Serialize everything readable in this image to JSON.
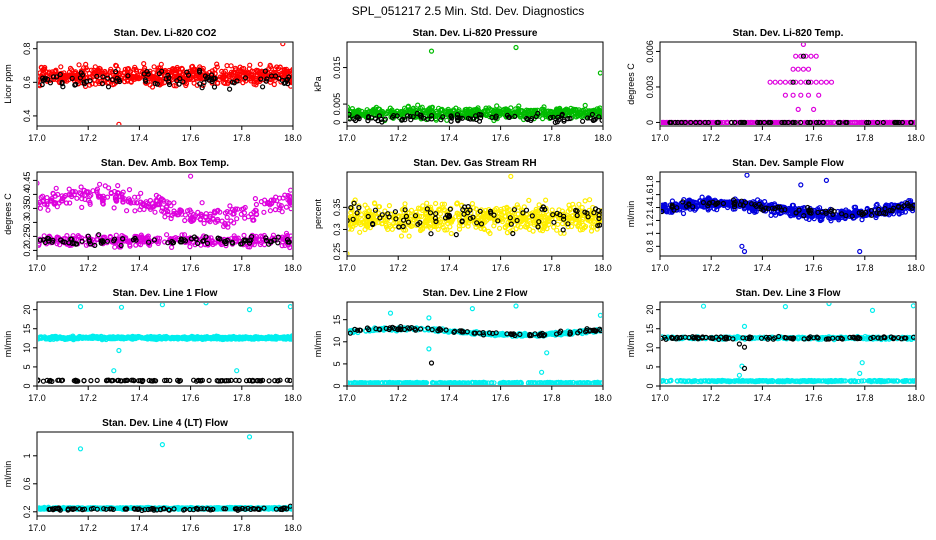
{
  "figure": {
    "title": "SPL_051217  2.5 Min. Std. Dev. Diagnostics"
  },
  "chart_data": [
    {
      "type": "scatter",
      "title": "Stan. Dev. Li-820 CO2",
      "ylabel": "Licor ppm",
      "xlim": [
        17.0,
        18.0
      ],
      "ylim": [
        0.34,
        0.84
      ],
      "xticks": [
        17.0,
        17.2,
        17.4,
        17.6,
        17.8,
        18.0
      ],
      "yticks": [
        0.4,
        0.6,
        0.8
      ],
      "series": [
        {
          "name": "main",
          "color": "#ff0000",
          "shape": "circle",
          "count": 600,
          "bands": [
            {
              "center": 0.64,
              "spread": 0.055
            }
          ],
          "outliers": [
            [
              17.32,
              0.35
            ],
            [
              17.96,
              0.83
            ]
          ]
        },
        {
          "name": "secondary",
          "color": "#000000",
          "shape": "circle",
          "count": 90,
          "bands": [
            {
              "center": 0.62,
              "spread": 0.05
            }
          ],
          "outliers": []
        }
      ]
    },
    {
      "type": "scatter",
      "title": "Stan. Dev. Li-820 Pressure",
      "ylabel": "kPa",
      "xlim": [
        17.0,
        18.0
      ],
      "ylim": [
        -0.001,
        0.022
      ],
      "xticks": [
        17.0,
        17.2,
        17.4,
        17.6,
        17.8,
        18.0
      ],
      "yticks": [
        0.0,
        0.005,
        0.015
      ],
      "series": [
        {
          "name": "main",
          "color": "#00bb00",
          "shape": "circle",
          "count": 600,
          "bands": [
            {
              "center": 0.0025,
              "spread": 0.0015
            }
          ],
          "outliers": [
            [
              17.33,
              0.0195
            ],
            [
              17.66,
              0.0205
            ],
            [
              17.99,
              0.0135
            ]
          ]
        },
        {
          "name": "secondary",
          "color": "#000000",
          "shape": "circle",
          "count": 90,
          "bands": [
            {
              "center": 0.0012,
              "spread": 0.001
            }
          ],
          "outliers": []
        }
      ]
    },
    {
      "type": "scatter",
      "title": "Stan. Dev. Li-820 Temp.",
      "ylabel": "degrees C",
      "xlim": [
        17.0,
        18.0
      ],
      "ylim": [
        -0.0003,
        0.0068
      ],
      "xticks": [
        17.0,
        17.2,
        17.4,
        17.6,
        17.8,
        18.0
      ],
      "yticks": [
        0.0,
        0.003,
        0.006
      ],
      "series": [
        {
          "name": "zero",
          "color": "#dd00dd",
          "shape": "circle",
          "count": 260,
          "bands": [
            {
              "center": 0.0,
              "spread": 0.0
            }
          ],
          "outliers": []
        },
        {
          "name": "black-zero",
          "color": "#000000",
          "shape": "circle",
          "count": 60,
          "bands": [
            {
              "center": 0.0,
              "spread": 0.0
            }
          ],
          "outliers": []
        },
        {
          "name": "stepped",
          "color": "#dd00dd",
          "shape": "circle",
          "count": 0,
          "bands": [],
          "outliers": [
            [
              17.43,
              0.0034
            ],
            [
              17.45,
              0.0034
            ],
            [
              17.47,
              0.0034
            ],
            [
              17.49,
              0.0034
            ],
            [
              17.51,
              0.0034
            ],
            [
              17.53,
              0.0034
            ],
            [
              17.55,
              0.0034
            ],
            [
              17.57,
              0.0034
            ],
            [
              17.59,
              0.0034
            ],
            [
              17.61,
              0.0034
            ],
            [
              17.63,
              0.0034
            ],
            [
              17.65,
              0.0034
            ],
            [
              17.67,
              0.0034
            ],
            [
              17.52,
              0.0045
            ],
            [
              17.54,
              0.0045
            ],
            [
              17.56,
              0.0045
            ],
            [
              17.58,
              0.0045
            ],
            [
              17.53,
              0.0056
            ],
            [
              17.55,
              0.0056
            ],
            [
              17.57,
              0.0056
            ],
            [
              17.59,
              0.0056
            ],
            [
              17.61,
              0.0056
            ],
            [
              17.56,
              0.0066
            ],
            [
              17.49,
              0.0023
            ],
            [
              17.52,
              0.0023
            ],
            [
              17.55,
              0.0023
            ],
            [
              17.58,
              0.0023
            ],
            [
              17.62,
              0.0023
            ],
            [
              17.54,
              0.0011
            ],
            [
              17.6,
              0.0011
            ]
          ]
        },
        {
          "name": "black-step",
          "color": "#000000",
          "shape": "circle",
          "count": 0,
          "bands": [],
          "outliers": [
            [
              17.52,
              0.0034
            ],
            [
              17.58,
              0.0034
            ],
            [
              17.56,
              0.0056
            ]
          ]
        }
      ]
    },
    {
      "type": "scatter",
      "title": "Stan. Dev. Amb. Box Temp.",
      "ylabel": "degrees C",
      "xlim": [
        17.0,
        18.0
      ],
      "ylim": [
        0.18,
        0.48
      ],
      "xticks": [
        17.0,
        17.2,
        17.4,
        17.6,
        17.8,
        18.0
      ],
      "yticks": [
        0.2,
        0.25,
        0.3,
        0.35,
        0.4,
        0.45
      ],
      "series": [
        {
          "name": "main",
          "color": "#dd00dd",
          "shape": "circle",
          "count": 600,
          "bands": [
            {
              "center": 0.36,
              "spread": 0.035,
              "wave": 0.04
            },
            {
              "center": 0.235,
              "spread": 0.02
            }
          ],
          "outliers": [
            [
              17.6,
              0.465
            ],
            [
              17.0,
              0.44
            ]
          ]
        },
        {
          "name": "secondary",
          "color": "#000000",
          "shape": "circle",
          "count": 90,
          "bands": [
            {
              "center": 0.235,
              "spread": 0.015
            }
          ],
          "outliers": []
        }
      ]
    },
    {
      "type": "scatter",
      "title": "Stan. Dev. Gas Stream RH",
      "ylabel": "percent",
      "xlim": [
        17.0,
        18.0
      ],
      "ylim": [
        0.24,
        0.43
      ],
      "xticks": [
        17.0,
        17.2,
        17.4,
        17.6,
        17.8,
        18.0
      ],
      "yticks": [
        0.25,
        0.3,
        0.35
      ],
      "series": [
        {
          "name": "main",
          "color": "#ffee00",
          "shape": "circle",
          "count": 600,
          "bands": [
            {
              "center": 0.325,
              "spread": 0.03
            }
          ],
          "outliers": [
            [
              17.0,
              0.245
            ],
            [
              17.64,
              0.42
            ]
          ]
        },
        {
          "name": "secondary",
          "color": "#000000",
          "shape": "circle",
          "count": 90,
          "bands": [
            {
              "center": 0.33,
              "spread": 0.03
            }
          ],
          "outliers": []
        }
      ]
    },
    {
      "type": "scatter",
      "title": "Stan. Dev. Sample Flow",
      "ylabel": "ml/min",
      "xlim": [
        17.0,
        18.0
      ],
      "ylim": [
        0.65,
        1.95
      ],
      "xticks": [
        17.0,
        17.2,
        17.4,
        17.6,
        17.8,
        18.0
      ],
      "yticks": [
        0.8,
        1.0,
        1.2,
        1.4,
        1.6,
        1.8
      ],
      "series": [
        {
          "name": "main",
          "color": "#0000dd",
          "shape": "circle",
          "count": 600,
          "bands": [
            {
              "center": 1.38,
              "spread": 0.09,
              "wave": 0.08
            }
          ],
          "outliers": [
            [
              17.32,
              0.8
            ],
            [
              17.33,
              0.72
            ],
            [
              17.78,
              0.72
            ],
            [
              17.34,
              1.9
            ],
            [
              17.65,
              1.82
            ],
            [
              17.55,
              1.75
            ]
          ]
        },
        {
          "name": "secondary",
          "color": "#000000",
          "shape": "circle",
          "count": 90,
          "bands": [
            {
              "center": 1.38,
              "spread": 0.06,
              "wave": 0.08
            }
          ],
          "outliers": []
        }
      ]
    },
    {
      "type": "scatter",
      "title": "Stan. Dev. Line 1 Flow",
      "ylabel": "ml/min",
      "xlim": [
        17.0,
        18.0
      ],
      "ylim": [
        0.0,
        22.0
      ],
      "xticks": [
        17.0,
        17.2,
        17.4,
        17.6,
        17.8,
        18.0
      ],
      "yticks": [
        0,
        5,
        10,
        15,
        20
      ],
      "series": [
        {
          "name": "main",
          "color": "#00eeee",
          "shape": "circle",
          "count": 600,
          "bands": [
            {
              "center": 12.6,
              "spread": 0.35
            }
          ],
          "outliers": [
            [
              17.17,
              20.8
            ],
            [
              17.33,
              20.6
            ],
            [
              17.49,
              21.3
            ],
            [
              17.66,
              21.8
            ],
            [
              17.83,
              20.0
            ],
            [
              17.99,
              20.8
            ],
            [
              17.32,
              9.3
            ],
            [
              17.3,
              4.0
            ],
            [
              17.78,
              4.0
            ]
          ]
        },
        {
          "name": "secondary",
          "color": "#000000",
          "shape": "circle",
          "count": 90,
          "bands": [
            {
              "center": 1.4,
              "spread": 0.15
            }
          ],
          "outliers": []
        }
      ]
    },
    {
      "type": "scatter",
      "title": "Stan. Dev. Line 2 Flow",
      "ylabel": "ml/min",
      "xlim": [
        17.0,
        18.0
      ],
      "ylim": [
        0.0,
        19.0
      ],
      "xticks": [
        17.0,
        17.2,
        17.4,
        17.6,
        17.8,
        18.0
      ],
      "yticks": [
        0,
        5,
        10,
        15
      ],
      "series": [
        {
          "name": "main",
          "color": "#00eeee",
          "shape": "circle",
          "count": 600,
          "bands": [
            {
              "center": 12.2,
              "spread": 0.35,
              "wave": 0.7
            },
            {
              "center": 0.7,
              "spread": 0.12
            }
          ],
          "outliers": [
            [
              17.17,
              16.5
            ],
            [
              17.32,
              15.4
            ],
            [
              17.66,
              18.1
            ],
            [
              17.99,
              16.0
            ],
            [
              17.76,
              3.1
            ],
            [
              17.78,
              7.5
            ],
            [
              17.32,
              8.4
            ],
            [
              17.49,
              17.5
            ]
          ]
        },
        {
          "name": "secondary",
          "color": "#000000",
          "shape": "circle",
          "count": 90,
          "bands": [
            {
              "center": 12.3,
              "spread": 0.35,
              "wave": 0.7
            }
          ],
          "outliers": [
            [
              17.33,
              5.2
            ]
          ]
        }
      ]
    },
    {
      "type": "scatter",
      "title": "Stan. Dev. Line 3 Flow",
      "ylabel": "ml/min",
      "xlim": [
        17.0,
        18.0
      ],
      "ylim": [
        0.0,
        22.0
      ],
      "xticks": [
        17.0,
        17.2,
        17.4,
        17.6,
        17.8,
        18.0
      ],
      "yticks": [
        0,
        5,
        10,
        15,
        20
      ],
      "series": [
        {
          "name": "main",
          "color": "#00eeee",
          "shape": "circle",
          "count": 600,
          "bands": [
            {
              "center": 12.6,
              "spread": 0.3
            },
            {
              "center": 1.3,
              "spread": 0.15
            }
          ],
          "outliers": [
            [
              17.17,
              20.9
            ],
            [
              17.33,
              15.6
            ],
            [
              17.49,
              20.8
            ],
            [
              17.66,
              21.6
            ],
            [
              17.83,
              19.8
            ],
            [
              17.99,
              21.0
            ],
            [
              17.32,
              5.2
            ],
            [
              17.31,
              2.8
            ],
            [
              17.78,
              3.3
            ],
            [
              17.79,
              6.1
            ]
          ]
        },
        {
          "name": "secondary",
          "color": "#000000",
          "shape": "circle",
          "count": 90,
          "bands": [
            {
              "center": 12.6,
              "spread": 0.3
            }
          ],
          "outliers": [
            [
              17.33,
              4.6
            ],
            [
              17.31,
              11.0
            ],
            [
              17.33,
              10.2
            ]
          ]
        }
      ]
    },
    {
      "type": "scatter",
      "title": "Stan. Dev. Line 4 (LT) Flow",
      "ylabel": "ml/min",
      "xlim": [
        17.0,
        18.0
      ],
      "ylim": [
        0.14,
        1.34
      ],
      "xticks": [
        17.0,
        17.2,
        17.4,
        17.6,
        17.8,
        18.0
      ],
      "yticks": [
        0.2,
        0.6,
        1.0
      ],
      "series": [
        {
          "name": "main",
          "color": "#00eeee",
          "shape": "circle",
          "count": 600,
          "bands": [
            {
              "center": 0.25,
              "spread": 0.012
            }
          ],
          "outliers": [
            [
              17.17,
              1.1
            ],
            [
              17.49,
              1.16
            ],
            [
              17.83,
              1.27
            ]
          ]
        },
        {
          "name": "secondary",
          "color": "#000000",
          "shape": "circle",
          "count": 90,
          "bands": [
            {
              "center": 0.24,
              "spread": 0.015
            }
          ],
          "outliers": [
            [
              17.99,
              0.28
            ]
          ]
        }
      ]
    }
  ]
}
